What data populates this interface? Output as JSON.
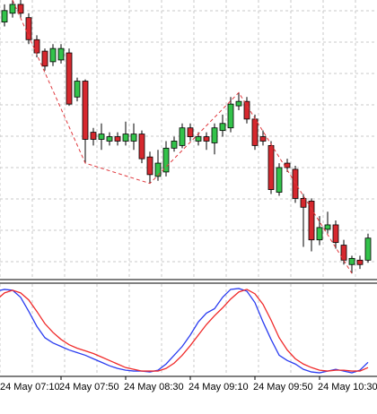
{
  "chart_data": {
    "type": "candlestick",
    "categories": [
      "24 May 07:10",
      null,
      null,
      null,
      null,
      null,
      null,
      null,
      "24 May 07:50",
      null,
      null,
      null,
      null,
      null,
      null,
      null,
      "24 May 08:30",
      null,
      null,
      null,
      null,
      null,
      null,
      null,
      "24 May 09:10",
      null,
      null,
      null,
      null,
      null,
      null,
      null,
      "24 May 09:50",
      null,
      null,
      null,
      null,
      null,
      null,
      null,
      "24 May 10:30",
      null,
      null,
      null,
      null,
      null,
      null
    ],
    "ohlc": [
      null,
      [
        280,
        300,
        275,
        293
      ],
      [
        290,
        305,
        285,
        300
      ],
      [
        300,
        305,
        285,
        290
      ],
      [
        285,
        290,
        255,
        260
      ],
      [
        260,
        265,
        240,
        245
      ],
      [
        247,
        250,
        225,
        230
      ],
      [
        235,
        255,
        230,
        250
      ],
      [
        237,
        255,
        233,
        250
      ],
      [
        245,
        250,
        185,
        187
      ],
      [
        195,
        217,
        190,
        213
      ],
      [
        213,
        215,
        120,
        147
      ],
      [
        155,
        160,
        140,
        147
      ],
      [
        147,
        165,
        135,
        153
      ],
      [
        145,
        155,
        140,
        150
      ],
      [
        150,
        155,
        140,
        145
      ],
      [
        145,
        167,
        140,
        153
      ],
      [
        145,
        165,
        135,
        153
      ],
      [
        153,
        157,
        120,
        125
      ],
      [
        127,
        133,
        97,
        107
      ],
      [
        105,
        135,
        100,
        120
      ],
      [
        110,
        145,
        105,
        137
      ],
      [
        137,
        150,
        133,
        145
      ],
      [
        140,
        165,
        137,
        160
      ],
      [
        160,
        165,
        145,
        150
      ],
      [
        145,
        155,
        140,
        150
      ],
      [
        150,
        155,
        135,
        145
      ],
      [
        143,
        165,
        130,
        160
      ],
      [
        157,
        175,
        150,
        165
      ],
      [
        160,
        195,
        155,
        187
      ],
      [
        185,
        200,
        180,
        190
      ],
      [
        190,
        195,
        165,
        170
      ],
      [
        170,
        175,
        135,
        140
      ],
      [
        150,
        157,
        140,
        145
      ],
      [
        140,
        145,
        85,
        90
      ],
      [
        87,
        120,
        83,
        115
      ],
      [
        120,
        125,
        110,
        115
      ],
      [
        113,
        117,
        75,
        80
      ],
      [
        80,
        85,
        25,
        70
      ],
      [
        77,
        80,
        20,
        33
      ],
      [
        33,
        60,
        27,
        47
      ],
      [
        45,
        65,
        40,
        50
      ],
      [
        50,
        55,
        23,
        30
      ],
      [
        27,
        33,
        5,
        10
      ],
      [
        5,
        15,
        -5,
        12
      ],
      [
        10,
        15,
        0,
        5
      ],
      [
        10,
        40,
        7,
        35
      ]
    ],
    "up_color": "#33c24a",
    "down_color": "#d6282e",
    "ylim": [
      -10,
      305
    ],
    "grid": true,
    "zigzag": {
      "color": "#e0393e",
      "x": [
        2,
        11,
        19,
        30,
        44
      ],
      "values": [
        305,
        120,
        97,
        200,
        -5
      ]
    },
    "stochastic": {
      "ylim": [
        0,
        100
      ],
      "lines": [
        {
          "color": "#2a3cf0",
          "values": [
            95,
            97,
            96,
            88,
            72,
            55,
            42,
            36,
            32,
            28,
            25,
            22,
            18,
            14,
            10,
            7,
            5,
            4,
            4,
            3,
            5,
            12,
            22,
            32,
            45,
            60,
            70,
            75,
            88,
            97,
            98,
            95,
            82,
            60,
            40,
            22,
            16,
            12,
            6,
            3,
            2,
            4,
            6,
            4,
            2,
            5,
            14
          ]
        },
        {
          "color": "#f02a2a",
          "values": [
            85,
            93,
            96,
            93,
            85,
            72,
            58,
            48,
            40,
            34,
            30,
            27,
            24,
            20,
            16,
            12,
            8,
            6,
            4,
            4,
            4,
            7,
            13,
            22,
            33,
            45,
            57,
            67,
            76,
            86,
            94,
            97,
            92,
            80,
            62,
            42,
            28,
            18,
            12,
            8,
            5,
            4,
            5,
            5,
            4,
            4,
            8
          ]
        }
      ]
    }
  }
}
